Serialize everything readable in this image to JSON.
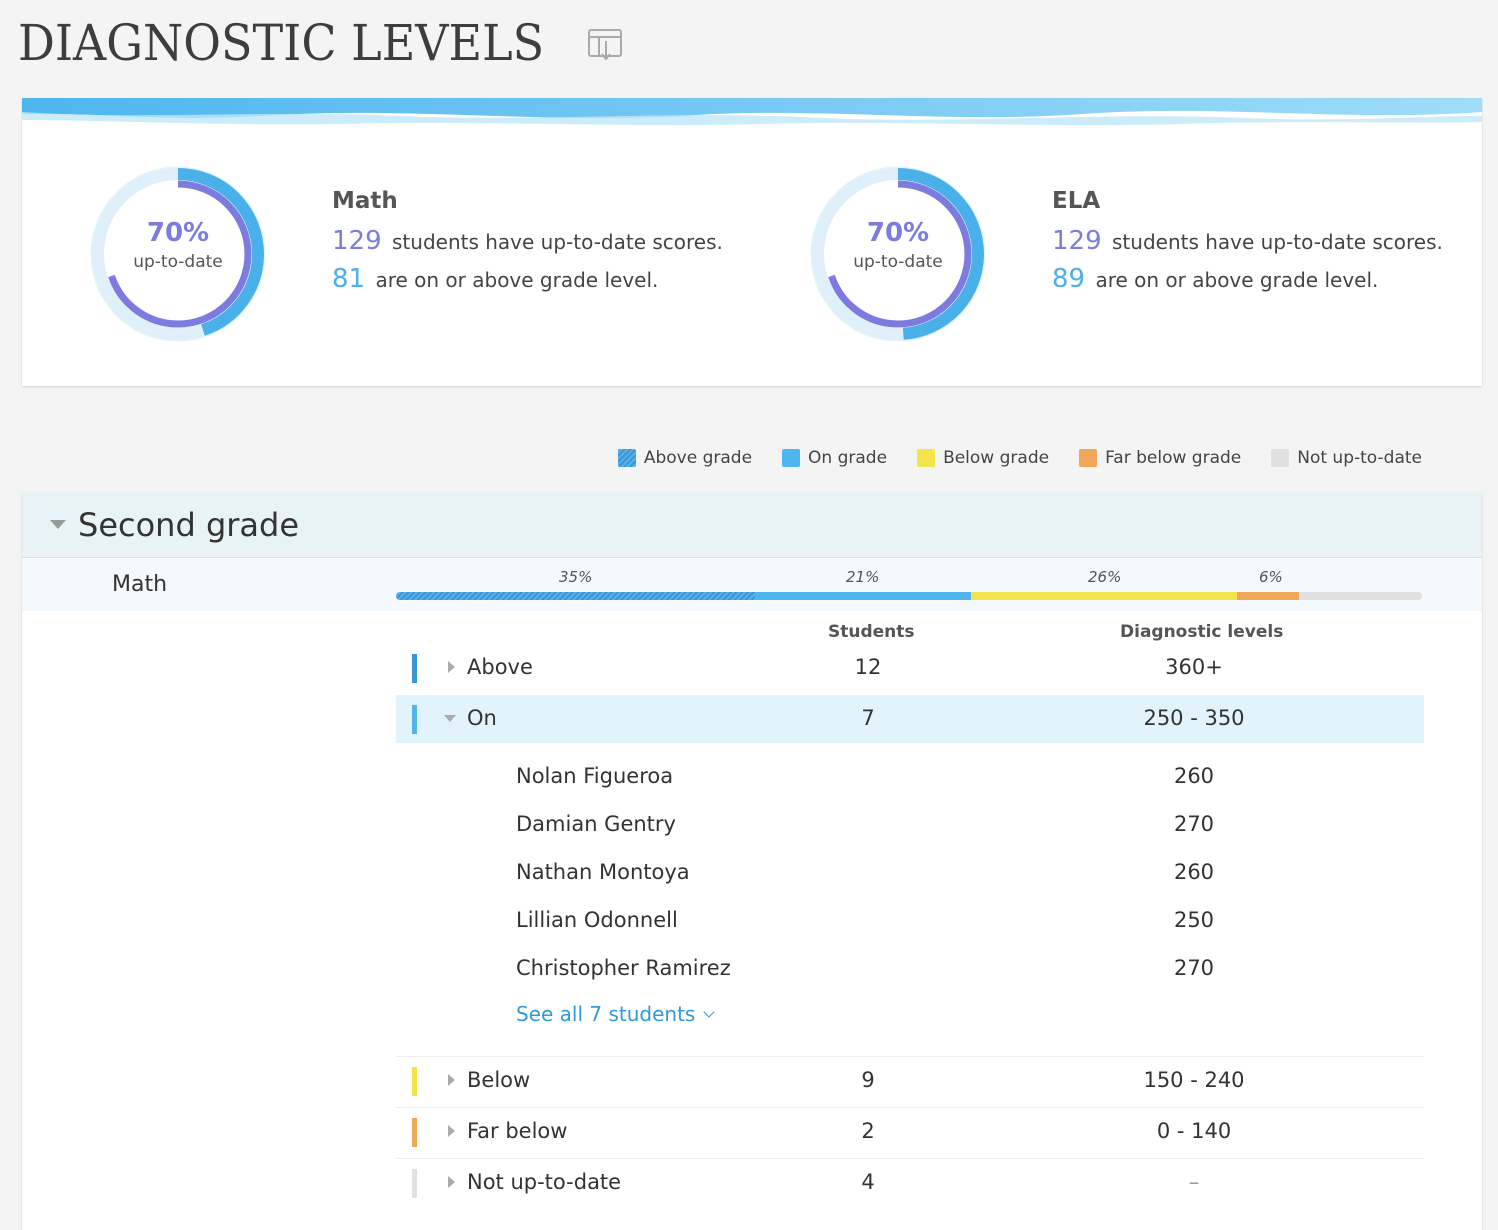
{
  "page": {
    "title": "DIAGNOSTIC LEVELS",
    "export_icon": "export-table-icon"
  },
  "summary": {
    "math": {
      "name": "Math",
      "percent": "70%",
      "percent_label": "up-to-date",
      "students_count": "129",
      "students_text": "students have up-to-date scores.",
      "on_above_count": "81",
      "on_above_text": "are on or above grade level."
    },
    "ela": {
      "name": "ELA",
      "percent": "70%",
      "percent_label": "up-to-date",
      "students_count": "129",
      "students_text": "students have up-to-date scores.",
      "on_above_count": "89",
      "on_above_text": "are on or above grade level."
    }
  },
  "legend": [
    {
      "label": "Above grade",
      "color": "#3a94d6"
    },
    {
      "label": "On grade",
      "color": "#4fb5ef"
    },
    {
      "label": "Below grade",
      "color": "#f2e44a"
    },
    {
      "label": "Far below grade",
      "color": "#f0a75a"
    },
    {
      "label": "Not up-to-date",
      "color": "#e0e0e0"
    }
  ],
  "grade": {
    "title": "Second grade",
    "subject": "Math",
    "distribution": [
      {
        "level": "Above",
        "percent": 35,
        "label": "35%"
      },
      {
        "level": "On",
        "percent": 21,
        "label": "21%"
      },
      {
        "level": "Below",
        "percent": 26,
        "label": "26%"
      },
      {
        "level": "Far below",
        "percent": 6,
        "label": "6%"
      }
    ],
    "columns": {
      "students": "Students",
      "levels": "Diagnostic levels"
    },
    "rows": [
      {
        "label": "Above",
        "students": "12",
        "levels": "360+",
        "color": "#3a94d6"
      },
      {
        "label": "On",
        "students": "7",
        "levels": "250 - 350",
        "color": "#4fb5ef"
      },
      {
        "label": "Below",
        "students": "9",
        "levels": "150 - 240",
        "color": "#f2e44a"
      },
      {
        "label": "Far below",
        "students": "2",
        "levels": "0 - 140",
        "color": "#f0a75a"
      },
      {
        "label": "Not up-to-date",
        "students": "4",
        "levels": "–",
        "color": "#e0e0e0"
      }
    ],
    "on_students": [
      {
        "name": "Nolan Figueroa",
        "score": "260"
      },
      {
        "name": "Damian Gentry",
        "score": "270"
      },
      {
        "name": "Nathan Montoya",
        "score": "260"
      },
      {
        "name": "Lillian Odonnell",
        "score": "250"
      },
      {
        "name": "Christopher Ramirez",
        "score": "270"
      }
    ],
    "see_all": "See all 7 students"
  }
}
